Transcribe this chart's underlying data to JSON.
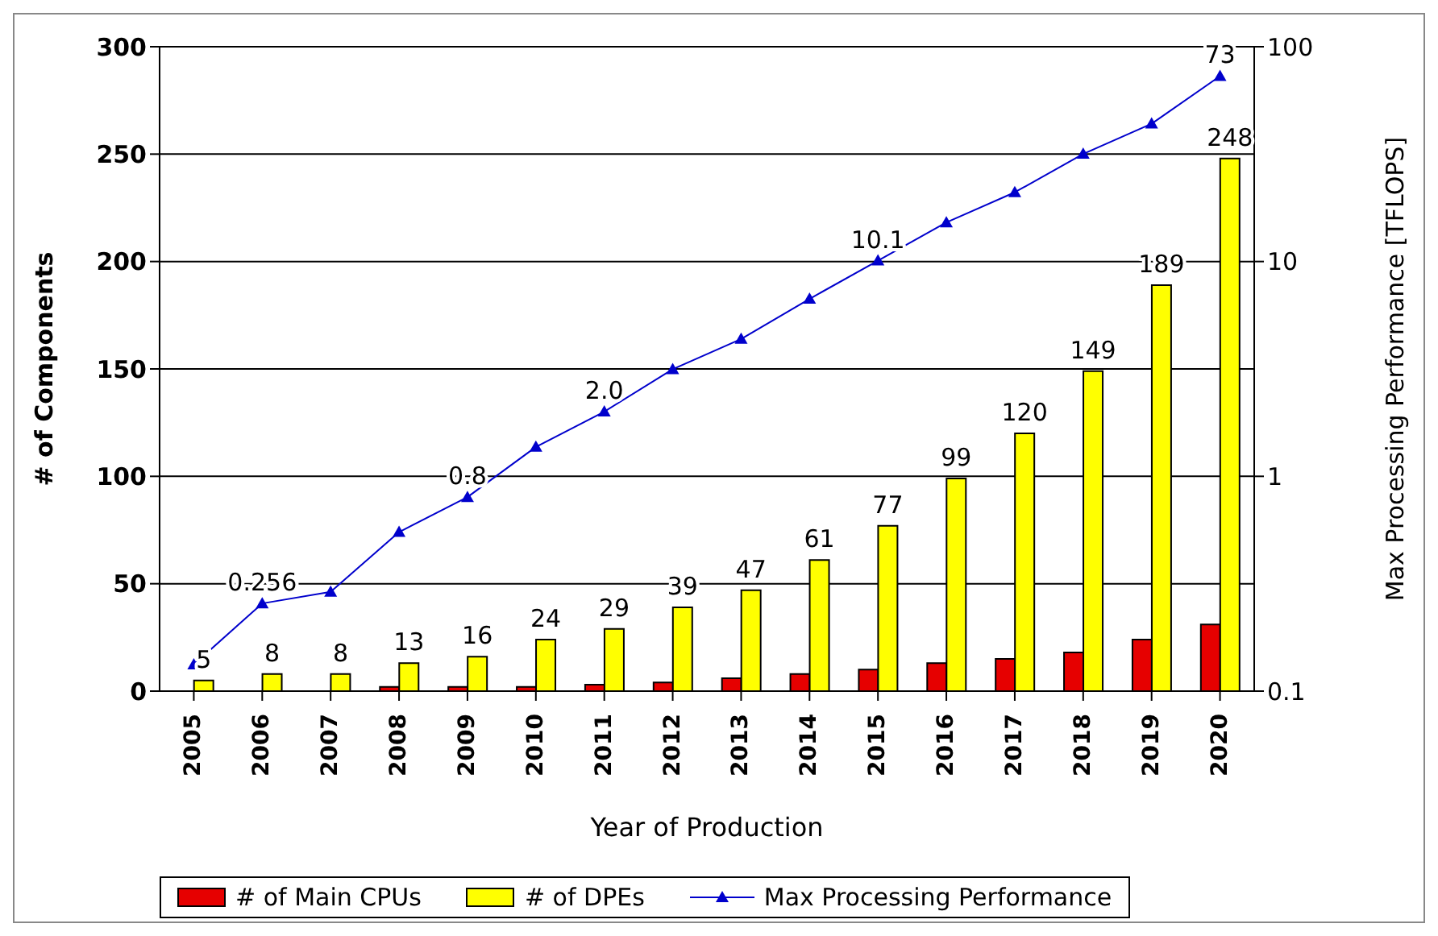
{
  "chart_data": {
    "type": "bar",
    "xlabel": "Year of Production",
    "ylabel": "# of Components",
    "y2label": "Max Processing Performance [TFLOPS]",
    "categories": [
      "2005",
      "2006",
      "2007",
      "2008",
      "2009",
      "2010",
      "2011",
      "2012",
      "2013",
      "2014",
      "2015",
      "2016",
      "2017",
      "2018",
      "2019",
      "2020"
    ],
    "series": [
      {
        "name": "# of Main CPUs",
        "color": "#e60000",
        "values": [
          0,
          0,
          0,
          2,
          2,
          2,
          3,
          4,
          6,
          8,
          10,
          13,
          15,
          18,
          24,
          31
        ]
      },
      {
        "name": "# of DPEs",
        "color": "#ffff00",
        "values": [
          5,
          8,
          8,
          13,
          16,
          24,
          29,
          39,
          47,
          61,
          77,
          99,
          120,
          149,
          189,
          248
        ],
        "value_labels": [
          "5",
          "8",
          "8",
          "13",
          "16",
          "24",
          "29",
          "39",
          "47",
          "61",
          "77",
          "99",
          "120",
          "149",
          "189",
          "248"
        ]
      },
      {
        "name": "Max Processing Performance",
        "type": "line",
        "axis": "y2",
        "color": "#0000cc",
        "marker": "triangle",
        "values": [
          0.133,
          0.256,
          0.29,
          0.55,
          0.8,
          1.37,
          2.0,
          3.15,
          4.36,
          6.7,
          10.1,
          15.2,
          21,
          31.7,
          43.8,
          73
        ],
        "value_labels": [
          null,
          "0.256",
          null,
          null,
          "0.8",
          null,
          "2.0",
          null,
          null,
          null,
          "10.1",
          null,
          null,
          null,
          null,
          "73"
        ]
      }
    ],
    "ylim": [
      0,
      300
    ],
    "yticks": [
      0,
      50,
      100,
      150,
      200,
      250,
      300
    ],
    "y2lim": [
      0.1,
      100
    ],
    "y2ticks": [
      0.1,
      1,
      10,
      100
    ],
    "log": "y2",
    "grid": "y",
    "legend": "bottom"
  }
}
